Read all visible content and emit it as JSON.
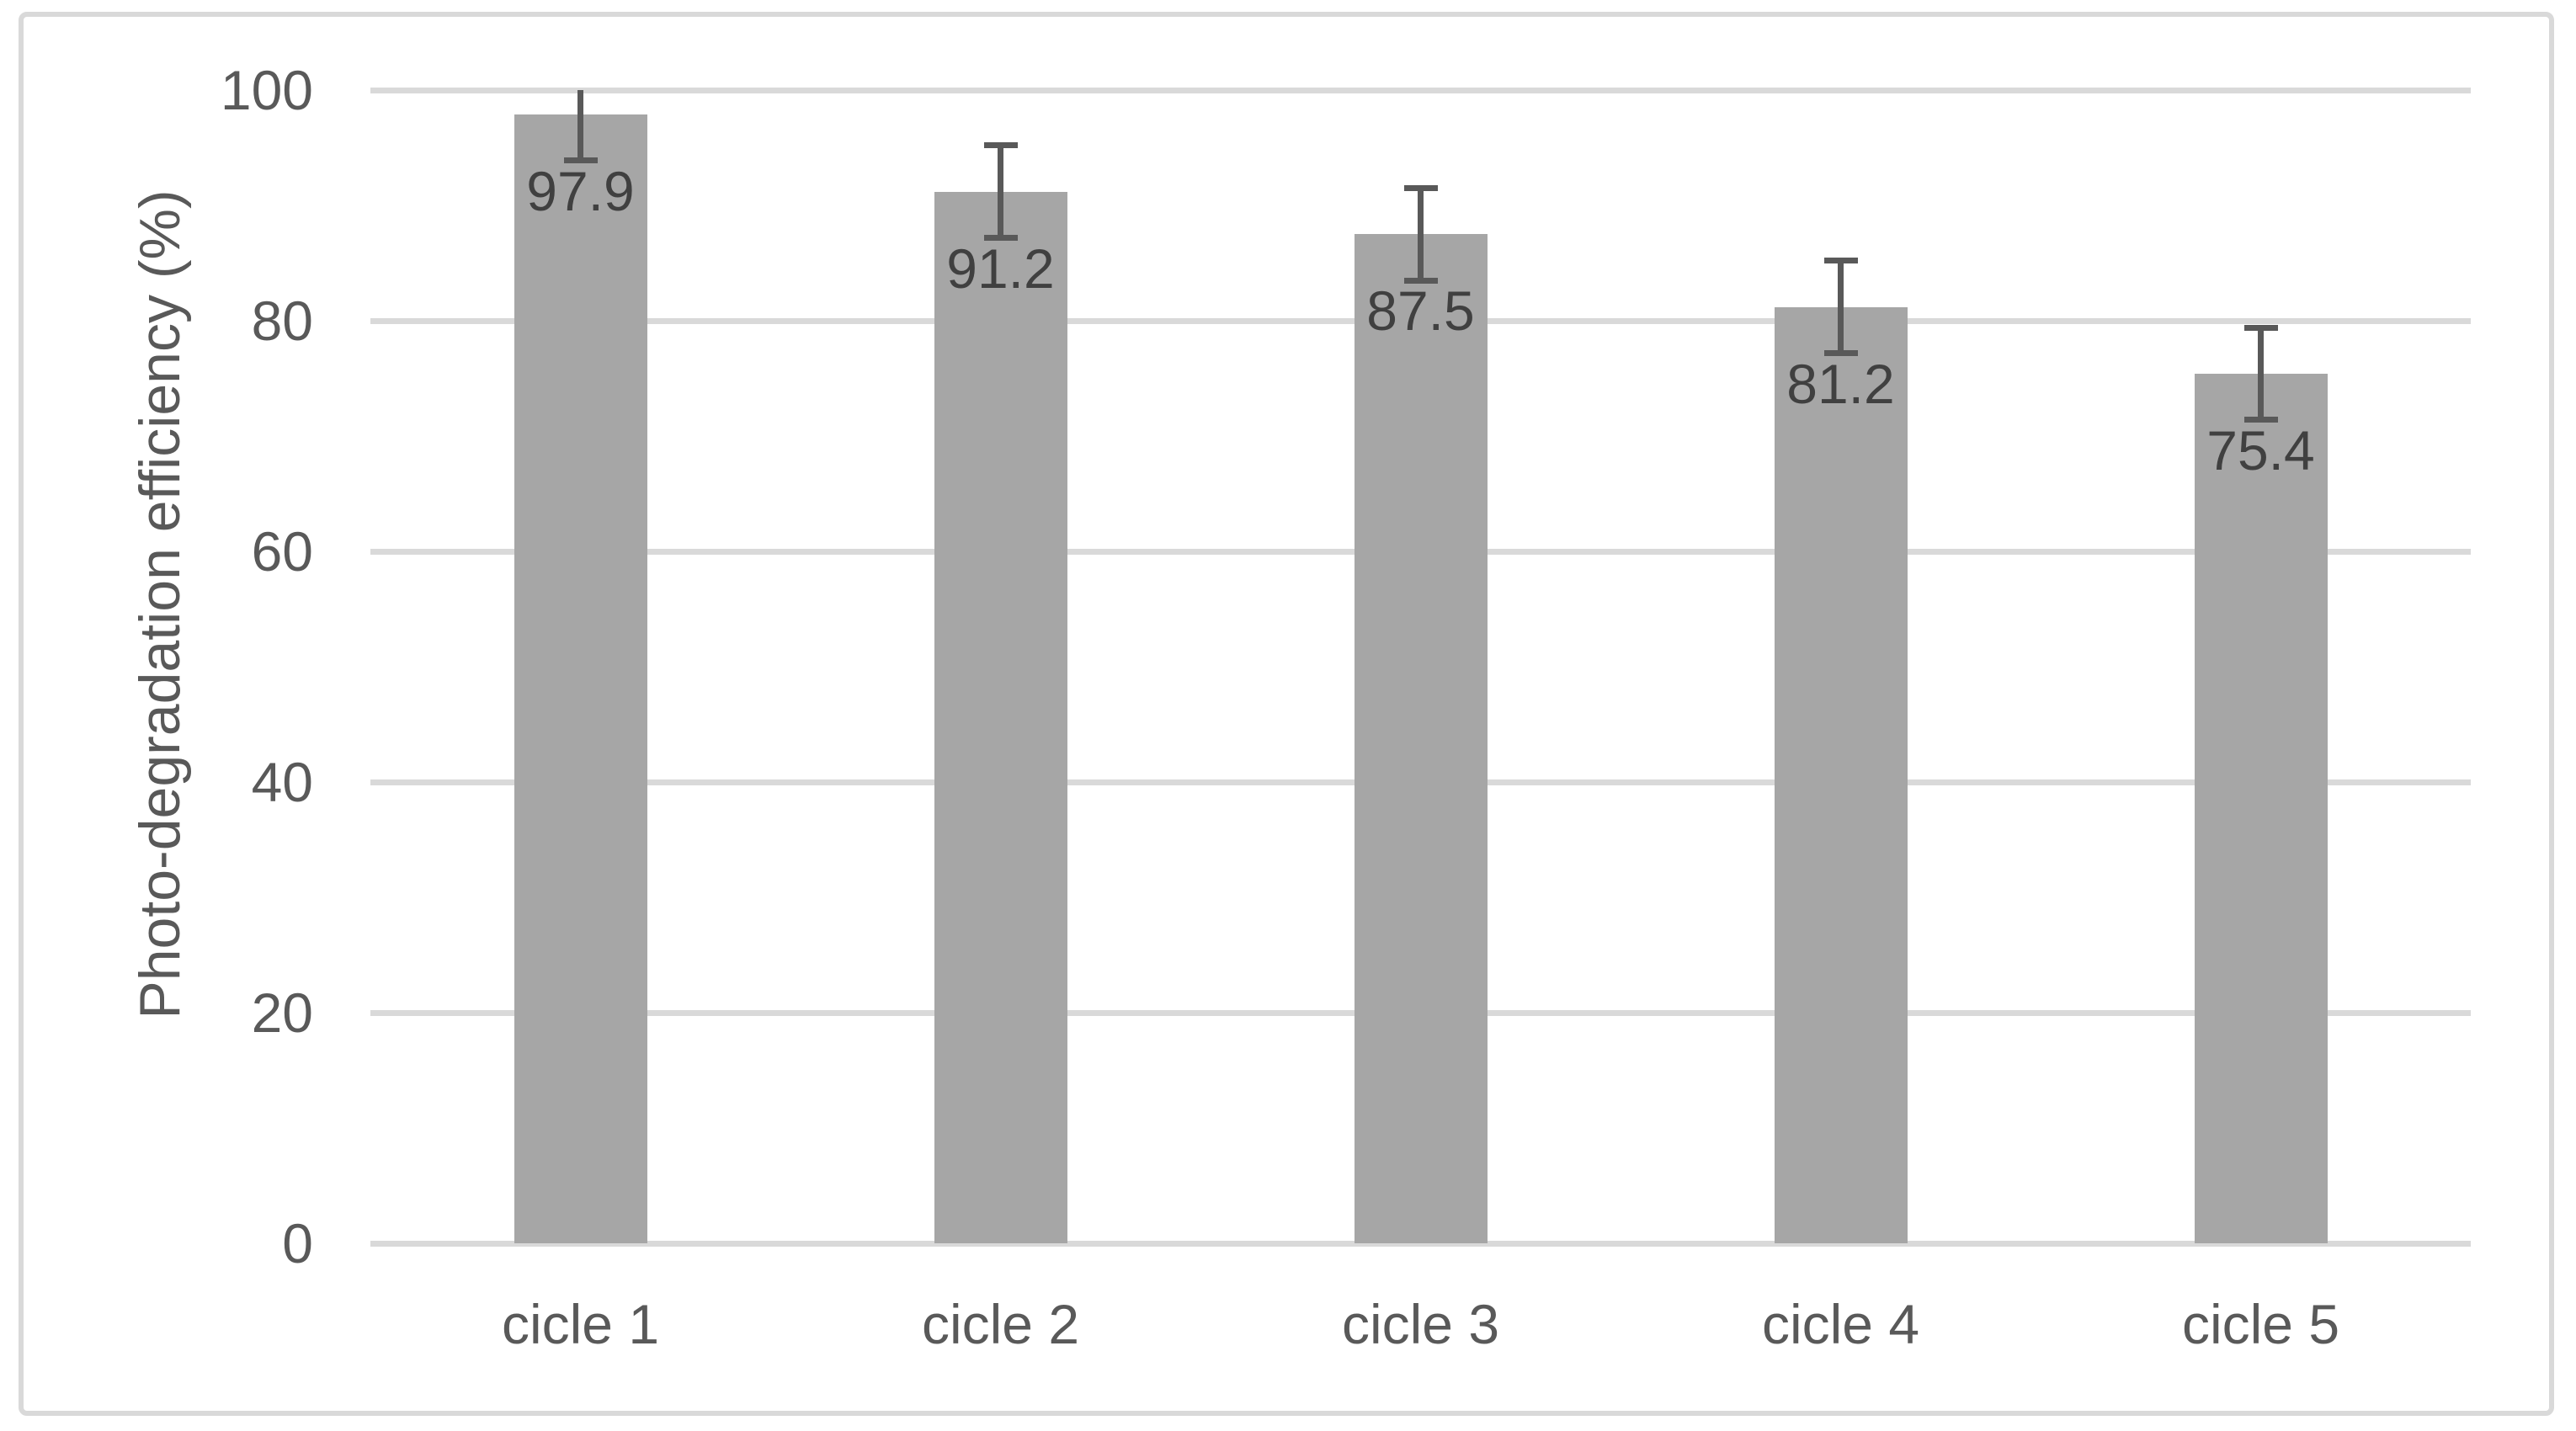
{
  "chart_data": {
    "type": "bar",
    "title": "",
    "xlabel": "",
    "ylabel": "Photo-degradation efficiency (%)",
    "categories": [
      "cicle 1",
      "cicle 2",
      "cicle 3",
      "cicle 4",
      "cicle 5"
    ],
    "series": [
      {
        "name": "Photo-degradation efficiency",
        "values": [
          97.9,
          91.2,
          87.5,
          81.2,
          75.4
        ],
        "data_labels": [
          "97.9",
          "91.2",
          "87.5",
          "81.2",
          "75.4"
        ],
        "error_bars": {
          "symmetric": true,
          "plus_minus": 4.0,
          "clipped_at_axis_max": true
        }
      }
    ],
    "ylim": [
      0,
      100
    ],
    "yticks": [
      0,
      20,
      40,
      60,
      80,
      100
    ],
    "ytick_labels": [
      "0",
      "20",
      "40",
      "60",
      "80",
      "100"
    ],
    "grid": "horizontal",
    "legend": "none",
    "data_label_position": "inside-end",
    "colors": {
      "bar_fill": "#a6a6a6",
      "error_bar": "#595959",
      "gridline": "#d9d9d9",
      "axis_text": "#595959",
      "data_label": "#404040",
      "frame_border": "#d9d9d9",
      "background": "#ffffff"
    }
  }
}
